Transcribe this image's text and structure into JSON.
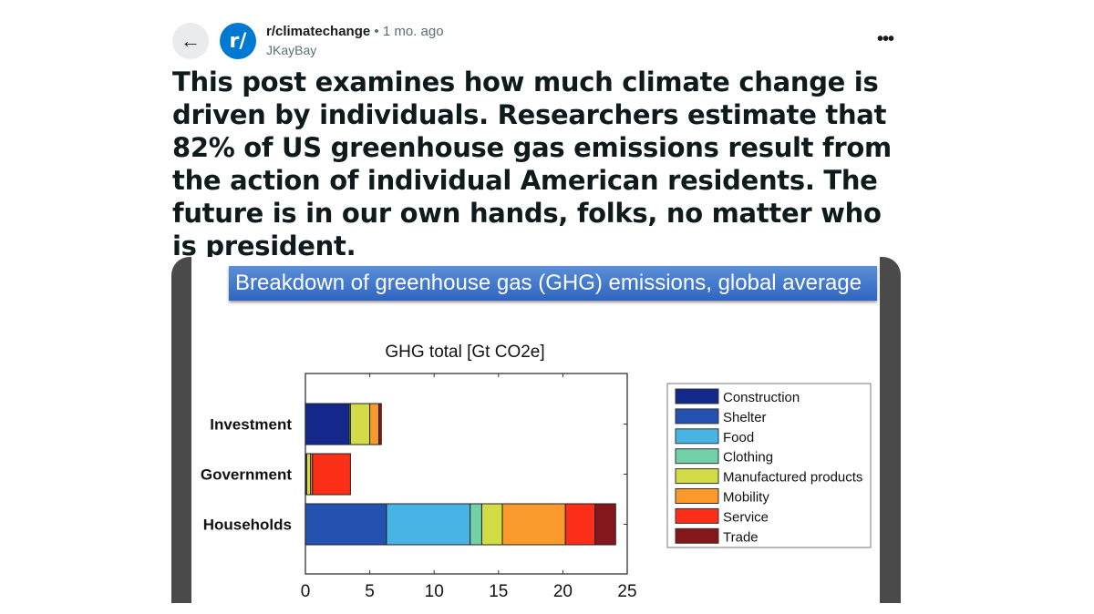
{
  "post": {
    "subreddit": "r/climatechange",
    "separator": "•",
    "age": "1 mo. ago",
    "author": "JKayBay",
    "avatar_text": "r/",
    "back_icon": "arrow-left-icon",
    "more_icon": "ellipsis-icon",
    "title": "This post examines how much climate change is driven by individuals. Researchers estimate that 82% of US greenhouse gas emissions result from the action of individual American residents. The future is in our own hands, folks, no matter who is president."
  },
  "slide": {
    "title": "Breakdown of greenhouse gas (GHG) emissions, global average"
  },
  "chart_data": {
    "type": "bar",
    "orientation": "horizontal",
    "stacked": true,
    "title": "GHG total [Gt CO2e]",
    "categories": [
      "Investment",
      "Government",
      "Households"
    ],
    "xlim": [
      0,
      25
    ],
    "xticks": [
      "0",
      "5",
      "10",
      "15",
      "20",
      "25"
    ],
    "grid": false,
    "legend_position": "right",
    "series": [
      {
        "name": "Construction",
        "color": "#13288a",
        "values": [
          3.4,
          0.1,
          0
        ]
      },
      {
        "name": "Shelter",
        "color": "#2450b0",
        "values": [
          0,
          0,
          6.3
        ]
      },
      {
        "name": "Food",
        "color": "#48b4e4",
        "values": [
          0,
          0,
          6.5
        ]
      },
      {
        "name": "Clothing",
        "color": "#74d0a8",
        "values": [
          0.1,
          0,
          0.9
        ]
      },
      {
        "name": "Manufactured products",
        "color": "#d2dc46",
        "values": [
          1.5,
          0.3,
          1.6
        ]
      },
      {
        "name": "Mobility",
        "color": "#fb9a2c",
        "values": [
          0.7,
          0.15,
          4.9
        ]
      },
      {
        "name": "Service",
        "color": "#fb2e18",
        "values": [
          0,
          2.95,
          2.3
        ]
      },
      {
        "name": "Trade",
        "color": "#84171a",
        "values": [
          0.2,
          0,
          1.6
        ]
      }
    ]
  }
}
